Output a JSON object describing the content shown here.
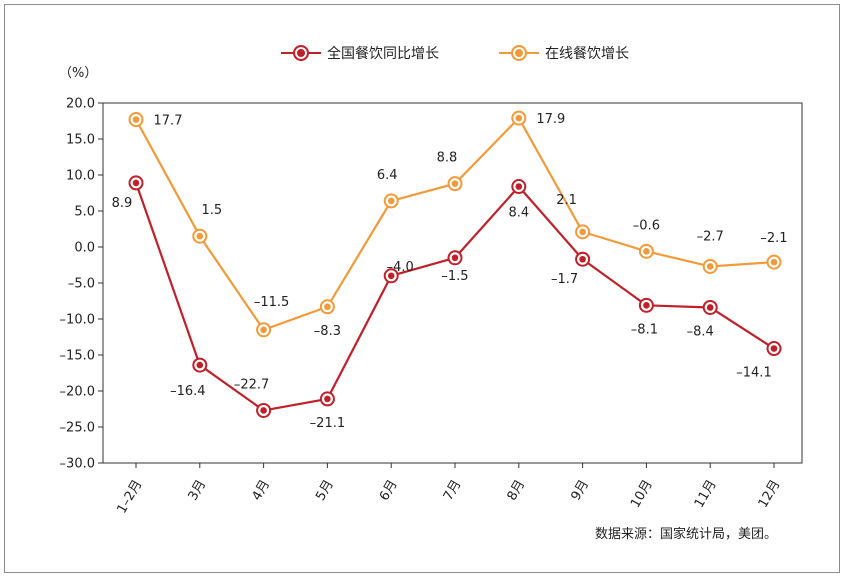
{
  "chart_data": {
    "type": "line",
    "title": "",
    "xlabel": "",
    "ylabel": "（%）",
    "ylim": [
      -30,
      20
    ],
    "ytick_step": 5,
    "categories": [
      "1–2月",
      "3月",
      "4月",
      "5月",
      "6月",
      "7月",
      "8月",
      "9月",
      "10月",
      "11月",
      "12月"
    ],
    "series": [
      {
        "name": "全国餐饮同比增长",
        "color": "#c0202a",
        "values": [
          8.9,
          -16.4,
          -22.7,
          -21.1,
          -4.0,
          -1.5,
          8.4,
          -1.7,
          -8.1,
          -8.4,
          -14.1
        ]
      },
      {
        "name": "在线餐饮增长",
        "color": "#f39a38",
        "values": [
          17.7,
          1.5,
          -11.5,
          -8.3,
          6.4,
          8.8,
          17.9,
          2.1,
          -0.6,
          -2.7,
          -2.1
        ]
      }
    ],
    "legend_position": "top"
  },
  "legend": {
    "series1_label": "全国餐饮同比增长",
    "series2_label": "在线餐饮增长"
  },
  "source_note": "数据来源：国家统计局，美团。"
}
